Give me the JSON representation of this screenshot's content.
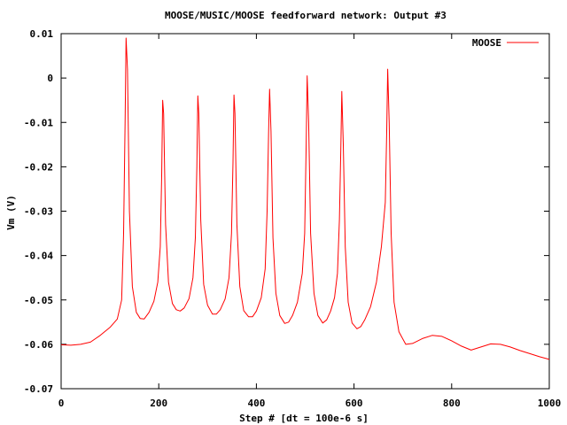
{
  "chart_data": {
    "type": "line",
    "title": "MOOSE/MUSIC/MOOSE feedforward network: Output #3",
    "xlabel": "Step # [dt = 100e-6 s]",
    "ylabel": "Vm (V)",
    "xlim": [
      0,
      1000
    ],
    "ylim": [
      -0.07,
      0.01
    ],
    "xticks": [
      "0",
      "200",
      "400",
      "600",
      "800",
      "1000"
    ],
    "yticks": [
      "0.01",
      "0",
      "-0.01",
      "-0.02",
      "-0.03",
      "-0.04",
      "-0.05",
      "-0.06",
      "-0.07"
    ],
    "grid": false,
    "legend_position": "top-right",
    "series": [
      {
        "name": "MOOSE",
        "color": "#ff0000",
        "x": [
          0,
          20,
          40,
          60,
          80,
          100,
          115,
          124,
          128,
          131,
          133,
          136,
          140,
          146,
          154,
          162,
          170,
          180,
          190,
          198,
          203,
          206,
          208,
          210,
          214,
          220,
          228,
          236,
          244,
          252,
          262,
          270,
          275,
          278,
          280,
          282,
          286,
          292,
          300,
          310,
          318,
          326,
          336,
          344,
          349,
          352,
          354,
          356,
          360,
          366,
          374,
          384,
          392,
          400,
          410,
          418,
          422,
          425,
          427,
          430,
          434,
          440,
          448,
          458,
          466,
          474,
          484,
          494,
          499,
          502,
          504,
          507,
          511,
          518,
          526,
          536,
          544,
          552,
          560,
          566,
          570,
          573,
          575,
          578,
          582,
          588,
          596,
          606,
          614,
          622,
          634,
          646,
          656,
          664,
          667,
          669,
          672,
          676,
          682,
          692,
          706,
          720,
          740,
          760,
          780,
          800,
          820,
          840,
          860,
          880,
          900,
          920,
          940,
          960,
          980,
          1000
        ],
        "y": [
          -0.0601,
          -0.0602,
          -0.06,
          -0.0595,
          -0.058,
          -0.0562,
          -0.0543,
          -0.05,
          -0.035,
          -0.01,
          0.009,
          0.002,
          -0.03,
          -0.047,
          -0.0528,
          -0.0542,
          -0.0543,
          -0.0528,
          -0.0503,
          -0.046,
          -0.038,
          -0.022,
          -0.005,
          -0.008,
          -0.033,
          -0.046,
          -0.0508,
          -0.0522,
          -0.0525,
          -0.0518,
          -0.0497,
          -0.045,
          -0.036,
          -0.02,
          -0.004,
          -0.008,
          -0.032,
          -0.0465,
          -0.0512,
          -0.0532,
          -0.0532,
          -0.0522,
          -0.0498,
          -0.045,
          -0.035,
          -0.019,
          -0.0038,
          -0.008,
          -0.033,
          -0.047,
          -0.0524,
          -0.0538,
          -0.0538,
          -0.0525,
          -0.0495,
          -0.043,
          -0.03,
          -0.012,
          -0.0025,
          -0.012,
          -0.036,
          -0.0485,
          -0.0535,
          -0.0553,
          -0.055,
          -0.0535,
          -0.0505,
          -0.044,
          -0.035,
          -0.015,
          0.0005,
          -0.01,
          -0.035,
          -0.0485,
          -0.0535,
          -0.0552,
          -0.0545,
          -0.0525,
          -0.0495,
          -0.044,
          -0.032,
          -0.016,
          -0.003,
          -0.015,
          -0.038,
          -0.0505,
          -0.0552,
          -0.0565,
          -0.056,
          -0.0545,
          -0.0515,
          -0.046,
          -0.038,
          -0.028,
          -0.012,
          0.002,
          -0.01,
          -0.035,
          -0.0505,
          -0.0572,
          -0.06,
          -0.0598,
          -0.0587,
          -0.058,
          -0.0582,
          -0.0592,
          -0.0604,
          -0.0613,
          -0.0606,
          -0.0599,
          -0.06,
          -0.0606,
          -0.0614,
          -0.0621,
          -0.0628,
          -0.0634
        ]
      }
    ]
  }
}
